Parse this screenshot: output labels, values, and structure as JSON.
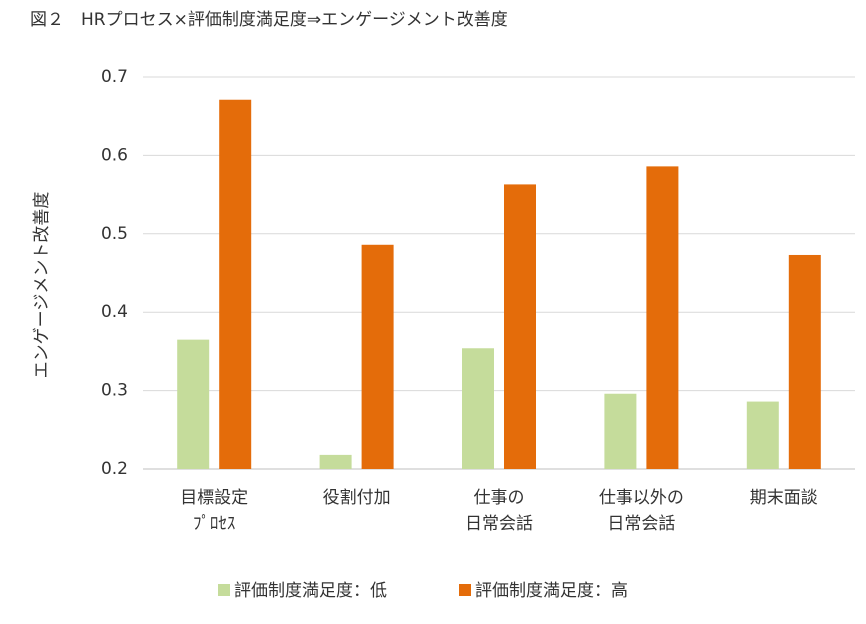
{
  "chart_data": {
    "type": "bar",
    "title": "図２　HRプロセス×評価制度満足度⇒エンゲージメント改善度",
    "y_label": "エンゲージメント改善度",
    "categories": [
      "目標設定\nﾌﾟﾛｾｽ",
      "役割付加",
      "仕事の\n日常会話",
      "仕事以外の\n日常会話",
      "期末面談"
    ],
    "series": [
      {
        "name": "評価制度満足度：低",
        "color": "#c5dc9b",
        "values": [
          0.365,
          0.218,
          0.354,
          0.296,
          0.286
        ]
      },
      {
        "name": "評価制度満足度：高",
        "color": "#e46c0a",
        "values": [
          0.671,
          0.486,
          0.563,
          0.586,
          0.473
        ]
      }
    ],
    "ylim": [
      0.2,
      0.7
    ],
    "yticks": [
      0.2,
      0.3,
      0.4,
      0.5,
      0.6,
      0.7
    ],
    "grid": true,
    "legend": "bottom"
  }
}
